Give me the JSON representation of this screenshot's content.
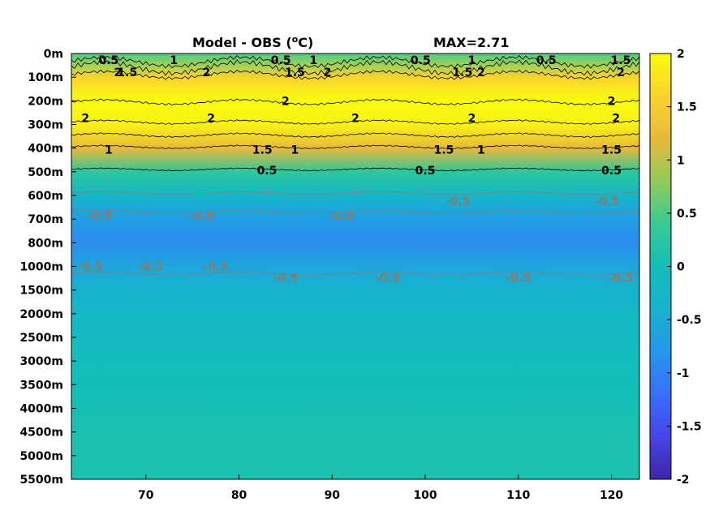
{
  "chart_data": {
    "type": "heatmap",
    "title": "Model - OBS (",
    "title_unit_sup": "o",
    "title_unit_end": "C)",
    "max_label": "MAX=2.71",
    "xlabel": "",
    "ylabel": "",
    "x_range": [
      62,
      123
    ],
    "x_ticks": [
      70,
      80,
      90,
      100,
      110,
      120
    ],
    "y_ticks": [
      "0m",
      "100m",
      "200m",
      "300m",
      "400m",
      "500m",
      "600m",
      "700m",
      "800m",
      "1000m",
      "1500m",
      "2000m",
      "2500m",
      "3000m",
      "3500m",
      "4000m",
      "4500m",
      "5000m",
      "5500m"
    ],
    "colorbar": {
      "range": [
        -2,
        2
      ],
      "ticks": [
        2,
        1.5,
        1,
        0.5,
        0,
        -0.5,
        -1,
        -1.5,
        -2
      ],
      "tick_labels": [
        "2",
        "1.5",
        "1",
        "0.5",
        "0",
        "-0.5",
        "-1",
        "-1.5",
        "-2"
      ],
      "colormap": "parula"
    },
    "depth_profile": [
      {
        "depth": "0m",
        "value": 0.5
      },
      {
        "depth": "100m",
        "value": 1.6
      },
      {
        "depth": "200m",
        "value": 2.3
      },
      {
        "depth": "300m",
        "value": 1.9
      },
      {
        "depth": "400m",
        "value": 1.2
      },
      {
        "depth": "500m",
        "value": 0.3
      },
      {
        "depth": "600m",
        "value": -0.3
      },
      {
        "depth": "700m",
        "value": -0.7
      },
      {
        "depth": "800m",
        "value": -0.9
      },
      {
        "depth": "1000m",
        "value": -0.6
      },
      {
        "depth": "1500m",
        "value": -0.4
      },
      {
        "depth": "2000m",
        "value": -0.2
      },
      {
        "depth": "2500m",
        "value": -0.15
      },
      {
        "depth": "3000m",
        "value": -0.05
      },
      {
        "depth": "3500m",
        "value": 0.0
      },
      {
        "depth": "4000m",
        "value": 0.05
      },
      {
        "depth": "4500m",
        "value": 0.1
      },
      {
        "depth": "5000m",
        "value": 0.1
      },
      {
        "depth": "5500m",
        "value": 0.1
      }
    ],
    "contour_labels": [
      {
        "text": "0.5",
        "x": 66,
        "depth": "0m",
        "sign": "pos"
      },
      {
        "text": "1",
        "x": 73,
        "depth": "0m",
        "sign": "pos"
      },
      {
        "text": "0.5",
        "x": 84.5,
        "depth": "0m",
        "sign": "pos"
      },
      {
        "text": "1",
        "x": 88,
        "depth": "0m",
        "sign": "pos"
      },
      {
        "text": "0.5",
        "x": 99.5,
        "depth": "0m",
        "sign": "pos"
      },
      {
        "text": "1",
        "x": 105,
        "depth": "0m",
        "sign": "pos"
      },
      {
        "text": "0.5",
        "x": 113,
        "depth": "0m",
        "sign": "pos"
      },
      {
        "text": "1.5",
        "x": 121,
        "depth": "0m",
        "sign": "pos"
      },
      {
        "text": "1.5",
        "x": 68,
        "depth": "100m",
        "sign": "pos"
      },
      {
        "text": "2",
        "x": 67,
        "depth": "100m",
        "sign": "pos"
      },
      {
        "text": "2",
        "x": 76.5,
        "depth": "100m",
        "sign": "pos"
      },
      {
        "text": "1.5",
        "x": 86,
        "depth": "100m",
        "sign": "pos"
      },
      {
        "text": "2",
        "x": 89.5,
        "depth": "100m",
        "sign": "pos"
      },
      {
        "text": "1.5",
        "x": 104,
        "depth": "100m",
        "sign": "pos"
      },
      {
        "text": "2",
        "x": 106,
        "depth": "100m",
        "sign": "pos"
      },
      {
        "text": "2",
        "x": 121,
        "depth": "100m",
        "sign": "pos"
      },
      {
        "text": "2",
        "x": 85,
        "depth": "200m",
        "sign": "pos"
      },
      {
        "text": "2",
        "x": 120,
        "depth": "200m",
        "sign": "pos"
      },
      {
        "text": "2",
        "x": 63.5,
        "depth": "300m",
        "sign": "pos"
      },
      {
        "text": "2",
        "x": 77,
        "depth": "300m",
        "sign": "pos"
      },
      {
        "text": "2",
        "x": 92.5,
        "depth": "300m",
        "sign": "pos"
      },
      {
        "text": "2",
        "x": 105,
        "depth": "300m",
        "sign": "pos"
      },
      {
        "text": "2",
        "x": 120.5,
        "depth": "300m",
        "sign": "pos"
      },
      {
        "text": "1.5",
        "x": 82.5,
        "depth": "400m",
        "sign": "pos"
      },
      {
        "text": "1.5",
        "x": 102,
        "depth": "400m",
        "sign": "pos"
      },
      {
        "text": "1.5",
        "x": 120,
        "depth": "400m",
        "sign": "pos"
      },
      {
        "text": "1",
        "x": 66,
        "depth": "400m",
        "sign": "pos"
      },
      {
        "text": "1",
        "x": 86,
        "depth": "400m",
        "sign": "pos"
      },
      {
        "text": "1",
        "x": 106,
        "depth": "400m",
        "sign": "pos"
      },
      {
        "text": "0.5",
        "x": 83,
        "depth": "500m",
        "sign": "pos"
      },
      {
        "text": "0.5",
        "x": 100,
        "depth": "500m",
        "sign": "pos"
      },
      {
        "text": "0.5",
        "x": 120,
        "depth": "500m",
        "sign": "pos"
      },
      {
        "text": "-0.5",
        "x": 65,
        "depth": "700m",
        "sign": "neg"
      },
      {
        "text": "-0.5",
        "x": 76,
        "depth": "700m",
        "sign": "neg"
      },
      {
        "text": "-0.5",
        "x": 91,
        "depth": "700m",
        "sign": "neg"
      },
      {
        "text": "-0.5",
        "x": 103.5,
        "depth": "600m",
        "sign": "neg"
      },
      {
        "text": "-0.5",
        "x": 119.5,
        "depth": "600m",
        "sign": "neg"
      },
      {
        "text": "-0.5",
        "x": 64,
        "depth": "1000m",
        "sign": "neg"
      },
      {
        "text": "-0.5",
        "x": 70.5,
        "depth": "1000m",
        "sign": "neg"
      },
      {
        "text": "-0.5",
        "x": 77.5,
        "depth": "1000m",
        "sign": "neg"
      },
      {
        "text": "-0.5",
        "x": 85,
        "depth": "1500m",
        "sign": "neg"
      },
      {
        "text": "-0.5",
        "x": 96,
        "depth": "1500m",
        "sign": "neg"
      },
      {
        "text": "-0.5",
        "x": 110,
        "depth": "1500m",
        "sign": "neg"
      },
      {
        "text": "-0.5",
        "x": 121,
        "depth": "1500m",
        "sign": "neg"
      }
    ]
  }
}
